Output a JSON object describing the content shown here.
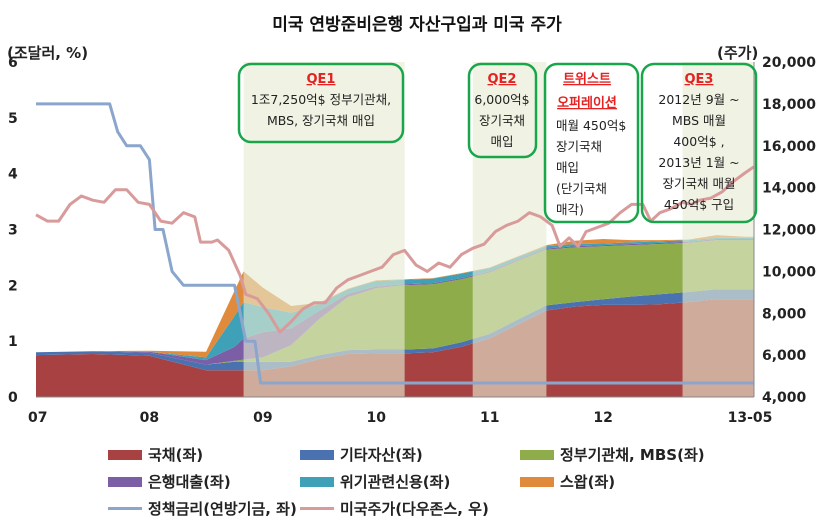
{
  "chart_data": {
    "type": "area",
    "title": "미국 연방준비은행 자산구입과 미국 주가",
    "ylabel_left": "(조달러,  %)",
    "ylabel_right": "(주가)",
    "ylim_left": [
      0,
      6
    ],
    "ylim_right": [
      4000,
      20000
    ],
    "yticks_left": [
      "0",
      "1",
      "2",
      "3",
      "4",
      "5",
      "6"
    ],
    "yticks_right": [
      "4,000",
      "6,000",
      "8,000",
      "10,000",
      "12,000",
      "14,000",
      "16,000",
      "18,000",
      "20,000"
    ],
    "xticks": [
      "07",
      "08",
      "09",
      "10",
      "11",
      "12",
      "13-05"
    ],
    "x": [
      2007.0,
      2007.5,
      2008.0,
      2008.5,
      2008.75,
      2008.83,
      2009.0,
      2009.25,
      2009.5,
      2009.75,
      2010.0,
      2010.25,
      2010.5,
      2010.75,
      2011.0,
      2011.25,
      2011.5,
      2011.75,
      2012.0,
      2012.25,
      2012.5,
      2012.75,
      2013.0,
      2013.25,
      2013.33
    ],
    "stack_series": [
      {
        "name": "국채(좌)",
        "color": "#a84242",
        "values": [
          0.75,
          0.77,
          0.74,
          0.48,
          0.48,
          0.48,
          0.48,
          0.55,
          0.68,
          0.77,
          0.78,
          0.78,
          0.8,
          0.9,
          1.05,
          1.3,
          1.55,
          1.62,
          1.65,
          1.65,
          1.66,
          1.7,
          1.75,
          1.75,
          1.75
        ]
      },
      {
        "name": "기타자산(좌)",
        "color": "#4a72b0",
        "values": [
          0.05,
          0.05,
          0.05,
          0.1,
          0.15,
          0.15,
          0.15,
          0.08,
          0.07,
          0.07,
          0.07,
          0.07,
          0.07,
          0.08,
          0.08,
          0.09,
          0.09,
          0.08,
          0.1,
          0.15,
          0.18,
          0.18,
          0.18,
          0.18,
          0.18
        ]
      },
      {
        "name": "정부기관채, MBS(좌)",
        "color": "#8eac4a",
        "values": [
          0,
          0,
          0,
          0,
          0.02,
          0.04,
          0.08,
          0.3,
          0.65,
          0.95,
          1.1,
          1.15,
          1.15,
          1.13,
          1.1,
          1.05,
          1.0,
          0.98,
          0.95,
          0.92,
          0.9,
          0.88,
          0.88,
          0.88,
          0.88
        ]
      },
      {
        "name": "은행대출(좌)",
        "color": "#7b5ea6",
        "values": [
          0,
          0,
          0.02,
          0.08,
          0.25,
          0.38,
          0.45,
          0.3,
          0.15,
          0.06,
          0.03,
          0.02,
          0.02,
          0.02,
          0.02,
          0.02,
          0.02,
          0.02,
          0.02,
          0.02,
          0.02,
          0.02,
          0.02,
          0.02,
          0.02
        ]
      },
      {
        "name": "위기관련신용(좌)",
        "color": "#3fa1b8",
        "values": [
          0,
          0,
          0,
          0.05,
          0.55,
          0.65,
          0.45,
          0.28,
          0.12,
          0.08,
          0.1,
          0.08,
          0.08,
          0.08,
          0.06,
          0.05,
          0.04,
          0.04,
          0.03,
          0.03,
          0.03,
          0.03,
          0.02,
          0.02,
          0.02
        ]
      },
      {
        "name": "스왑(좌)",
        "color": "#e08b3c",
        "values": [
          0,
          0,
          0.02,
          0.1,
          0.45,
          0.55,
          0.35,
          0.12,
          0.02,
          0.01,
          0.01,
          0.01,
          0.01,
          0.01,
          0.01,
          0.01,
          0.02,
          0.06,
          0.08,
          0.04,
          0.02,
          0.01,
          0.05,
          0.02,
          0.02
        ]
      }
    ],
    "line_series": [
      {
        "name": "정책금리(연방기금, 좌)",
        "axis": "left",
        "color": "#8ba6cc",
        "points": [
          [
            2007.0,
            5.25
          ],
          [
            2007.65,
            5.25
          ],
          [
            2007.72,
            4.75
          ],
          [
            2007.8,
            4.5
          ],
          [
            2007.92,
            4.5
          ],
          [
            2008.0,
            4.25
          ],
          [
            2008.05,
            3.0
          ],
          [
            2008.12,
            3.0
          ],
          [
            2008.2,
            2.25
          ],
          [
            2008.3,
            2.0
          ],
          [
            2008.4,
            2.0
          ],
          [
            2008.75,
            2.0
          ],
          [
            2008.8,
            1.5
          ],
          [
            2008.85,
            1.0
          ],
          [
            2008.93,
            1.0
          ],
          [
            2008.98,
            0.25
          ],
          [
            2013.33,
            0.25
          ]
        ]
      },
      {
        "name": "미국주가(다우존스, 우)",
        "axis": "right",
        "color": "#d99a9a",
        "points": [
          [
            2007.0,
            12700
          ],
          [
            2007.1,
            12400
          ],
          [
            2007.2,
            12400
          ],
          [
            2007.3,
            13200
          ],
          [
            2007.4,
            13600
          ],
          [
            2007.5,
            13400
          ],
          [
            2007.6,
            13300
          ],
          [
            2007.7,
            13900
          ],
          [
            2007.8,
            13900
          ],
          [
            2007.9,
            13300
          ],
          [
            2008.0,
            13200
          ],
          [
            2008.1,
            12400
          ],
          [
            2008.2,
            12300
          ],
          [
            2008.3,
            12800
          ],
          [
            2008.4,
            12600
          ],
          [
            2008.45,
            11400
          ],
          [
            2008.55,
            11400
          ],
          [
            2008.6,
            11500
          ],
          [
            2008.7,
            11000
          ],
          [
            2008.8,
            9800
          ],
          [
            2008.85,
            8900
          ],
          [
            2008.95,
            8700
          ],
          [
            2009.05,
            8000
          ],
          [
            2009.15,
            7100
          ],
          [
            2009.25,
            7600
          ],
          [
            2009.35,
            8200
          ],
          [
            2009.45,
            8500
          ],
          [
            2009.55,
            8500
          ],
          [
            2009.65,
            9200
          ],
          [
            2009.75,
            9600
          ],
          [
            2009.85,
            9800
          ],
          [
            2009.95,
            10000
          ],
          [
            2010.05,
            10200
          ],
          [
            2010.15,
            10800
          ],
          [
            2010.25,
            11000
          ],
          [
            2010.35,
            10300
          ],
          [
            2010.45,
            10000
          ],
          [
            2010.55,
            10400
          ],
          [
            2010.65,
            10200
          ],
          [
            2010.75,
            10800
          ],
          [
            2010.85,
            11100
          ],
          [
            2010.95,
            11300
          ],
          [
            2011.05,
            11900
          ],
          [
            2011.15,
            12200
          ],
          [
            2011.25,
            12400
          ],
          [
            2011.35,
            12800
          ],
          [
            2011.45,
            12600
          ],
          [
            2011.55,
            12200
          ],
          [
            2011.62,
            11200
          ],
          [
            2011.7,
            11600
          ],
          [
            2011.78,
            11200
          ],
          [
            2011.85,
            11900
          ],
          [
            2011.95,
            12100
          ],
          [
            2012.05,
            12300
          ],
          [
            2012.15,
            12800
          ],
          [
            2012.25,
            13200
          ],
          [
            2012.35,
            13200
          ],
          [
            2012.42,
            12400
          ],
          [
            2012.5,
            12800
          ],
          [
            2012.6,
            13000
          ],
          [
            2012.7,
            13300
          ],
          [
            2012.78,
            13200
          ],
          [
            2012.85,
            13400
          ],
          [
            2012.95,
            13500
          ],
          [
            2013.05,
            13800
          ],
          [
            2013.15,
            14300
          ],
          [
            2013.25,
            14700
          ],
          [
            2013.33,
            15000
          ]
        ]
      }
    ],
    "shaded_periods": [
      {
        "label": "QE1",
        "from": 2008.83,
        "to": 2010.25,
        "lines": [
          "1조7,250억$ 정부기관채,",
          "MBS, 장기국채 매입"
        ]
      },
      {
        "label": "QE2",
        "from": 2010.85,
        "to": 2011.5,
        "lines": [
          "6,000억$",
          "장기국채",
          "매입"
        ]
      },
      {
        "label": "QE3",
        "from": 2012.7,
        "to": 2013.33,
        "lines": [
          "2012년 9월 ~",
          "MBS 매월",
          "400억$ ,",
          "2013년 1월 ~",
          "장기국채 매월",
          "450억$ 구입"
        ]
      }
    ],
    "annotation_box": {
      "label": "트위스트\n오퍼레이션",
      "lines": [
        "매월 450억$",
        "장기국채",
        "매입",
        "(단기국채",
        "매각)"
      ]
    },
    "legend_position": "bottom"
  }
}
